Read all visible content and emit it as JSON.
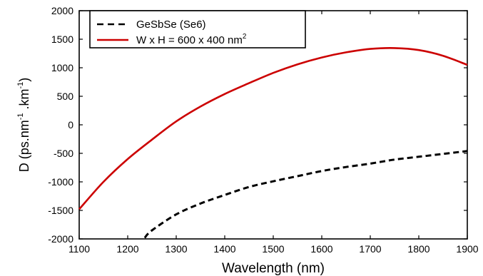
{
  "chart_data": {
    "type": "line",
    "xlabel": "Wavelength (nm)",
    "ylabel": {
      "main": "D (ps.nm",
      "sup1": "-1",
      "mid": " .km",
      "sup2": "-1",
      "end": ")"
    },
    "xlim": [
      1100,
      1900
    ],
    "ylim": [
      -2000,
      2000
    ],
    "x_ticks": [
      1100,
      1200,
      1300,
      1400,
      1500,
      1600,
      1700,
      1800,
      1900
    ],
    "y_ticks": [
      -2000,
      -1500,
      -1000,
      -500,
      0,
      500,
      1000,
      1500,
      2000
    ],
    "grid": false,
    "legend_position": "top-left",
    "legend": {
      "entry1": "GeSbSe (Se6)",
      "entry2_main": "W x H = 600 x 400 nm",
      "entry2_sup": "2"
    },
    "series": [
      {
        "name": "GeSbSe (Se6)",
        "color": "#000000",
        "style": "dashed",
        "x": [
          1235,
          1250,
          1300,
          1350,
          1400,
          1450,
          1500,
          1550,
          1600,
          1650,
          1700,
          1750,
          1800,
          1850,
          1900
        ],
        "y": [
          -1980,
          -1850,
          -1570,
          -1380,
          -1230,
          -1090,
          -990,
          -900,
          -810,
          -740,
          -680,
          -610,
          -560,
          -510,
          -460
        ]
      },
      {
        "name": "W x H = 600 x 400 nm2",
        "color": "#cc0000",
        "style": "solid",
        "x": [
          1100,
          1150,
          1200,
          1250,
          1300,
          1350,
          1400,
          1450,
          1500,
          1550,
          1600,
          1650,
          1700,
          1750,
          1800,
          1850,
          1900
        ],
        "y": [
          -1480,
          -1000,
          -600,
          -260,
          60,
          320,
          540,
          730,
          910,
          1060,
          1180,
          1270,
          1330,
          1345,
          1310,
          1210,
          1050
        ]
      }
    ]
  }
}
